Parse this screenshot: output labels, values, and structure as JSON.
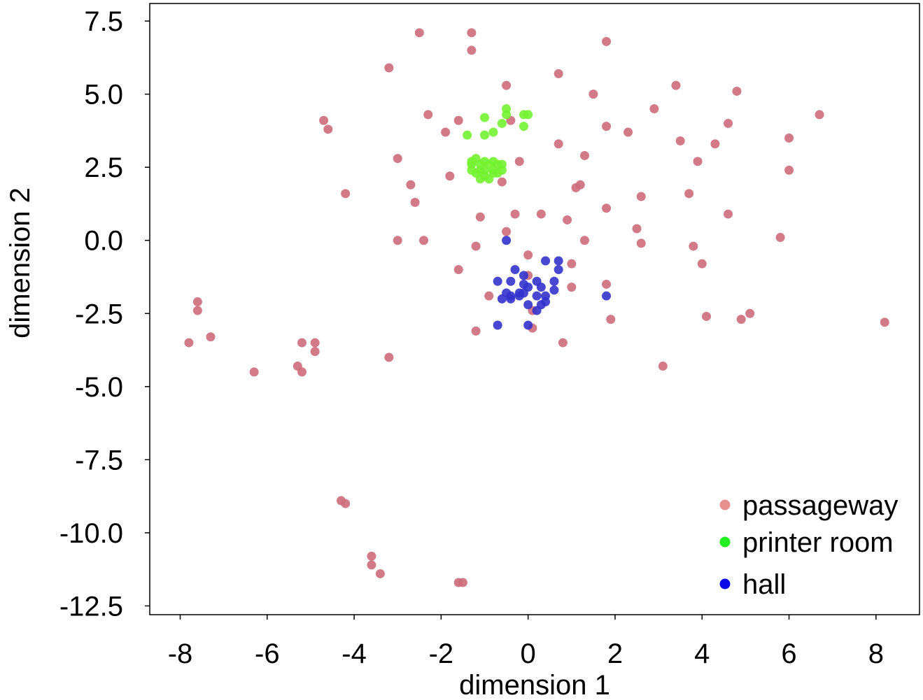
{
  "chart_data": {
    "type": "scatter",
    "title": "",
    "xlabel": "dimension 1",
    "ylabel": "dimension 2",
    "xlim": [
      -8.7,
      9.0
    ],
    "ylim": [
      -12.8,
      8.1
    ],
    "xticks": [
      -8,
      -6,
      -4,
      -2,
      0,
      2,
      4,
      6,
      8
    ],
    "xtick_labels": [
      "-8",
      "-6",
      "-4",
      "-2",
      "0",
      "2",
      "4",
      "6",
      "8"
    ],
    "yticks": [
      7.5,
      5.0,
      2.5,
      0.0,
      -2.5,
      -5.0,
      -7.5,
      -10.0,
      -12.5
    ],
    "ytick_labels": [
      "7.5",
      "5.0",
      "2.5",
      "0.0",
      "-2.5",
      "-5.0",
      "-7.5",
      "-10.0",
      "-12.5"
    ],
    "grid": false,
    "legend_position": "bottom-right",
    "series": [
      {
        "name": "passageway",
        "color": "#cd6b7a",
        "legend_color": "#e8918e",
        "points": [
          [
            -2.5,
            7.1
          ],
          [
            -1.3,
            7.1
          ],
          [
            -1.3,
            6.5
          ],
          [
            1.8,
            6.8
          ],
          [
            -3.2,
            5.9
          ],
          [
            0.7,
            5.7
          ],
          [
            -0.5,
            5.3
          ],
          [
            1.5,
            5.0
          ],
          [
            3.4,
            5.3
          ],
          [
            4.8,
            5.1
          ],
          [
            -2.3,
            4.3
          ],
          [
            -1.6,
            4.1
          ],
          [
            -0.4,
            4.1
          ],
          [
            2.9,
            4.5
          ],
          [
            6.7,
            4.3
          ],
          [
            -4.7,
            4.1
          ],
          [
            -4.6,
            3.8
          ],
          [
            -1.9,
            3.7
          ],
          [
            1.8,
            3.9
          ],
          [
            2.3,
            3.7
          ],
          [
            4.6,
            4.0
          ],
          [
            6.0,
            3.5
          ],
          [
            3.5,
            3.4
          ],
          [
            0.7,
            3.3
          ],
          [
            4.3,
            3.3
          ],
          [
            -3.0,
            2.8
          ],
          [
            1.3,
            2.9
          ],
          [
            -0.2,
            2.7
          ],
          [
            3.9,
            2.7
          ],
          [
            6.0,
            2.4
          ],
          [
            -1.8,
            2.2
          ],
          [
            -0.6,
            2.0
          ],
          [
            -2.7,
            1.9
          ],
          [
            1.1,
            1.8
          ],
          [
            1.2,
            1.9
          ],
          [
            -4.2,
            1.6
          ],
          [
            3.7,
            1.6
          ],
          [
            -2.6,
            1.3
          ],
          [
            2.6,
            1.5
          ],
          [
            1.8,
            1.1
          ],
          [
            -0.3,
            0.9
          ],
          [
            0.3,
            0.9
          ],
          [
            4.6,
            0.9
          ],
          [
            -1.1,
            0.8
          ],
          [
            0.9,
            0.7
          ],
          [
            -0.5,
            0.3
          ],
          [
            2.5,
            0.4
          ],
          [
            -3.0,
            0.0
          ],
          [
            -2.4,
            0.0
          ],
          [
            1.3,
            0.0
          ],
          [
            2.6,
            -0.1
          ],
          [
            5.8,
            0.1
          ],
          [
            -1.2,
            -0.2
          ],
          [
            3.8,
            -0.2
          ],
          [
            0.0,
            -0.5
          ],
          [
            1.0,
            -0.8
          ],
          [
            4.0,
            -0.8
          ],
          [
            -1.6,
            -1.0
          ],
          [
            1.8,
            -1.5
          ],
          [
            0.0,
            -1.2
          ],
          [
            1.0,
            -1.6
          ],
          [
            -0.9,
            -1.9
          ],
          [
            0.1,
            -2.4
          ],
          [
            4.1,
            -2.6
          ],
          [
            4.9,
            -2.7
          ],
          [
            5.1,
            -2.5
          ],
          [
            1.9,
            -2.7
          ],
          [
            8.2,
            -2.8
          ],
          [
            -1.2,
            -3.1
          ],
          [
            0.1,
            -3.0
          ],
          [
            0.8,
            -3.5
          ],
          [
            -7.6,
            -2.1
          ],
          [
            -7.6,
            -2.4
          ],
          [
            -7.3,
            -3.3
          ],
          [
            -7.8,
            -3.5
          ],
          [
            -5.2,
            -3.5
          ],
          [
            -4.9,
            -3.5
          ],
          [
            -4.9,
            -3.8
          ],
          [
            -3.2,
            -4.0
          ],
          [
            -5.3,
            -4.3
          ],
          [
            -5.2,
            -4.5
          ],
          [
            -6.3,
            -4.5
          ],
          [
            3.1,
            -4.3
          ],
          [
            -4.3,
            -8.9
          ],
          [
            -4.2,
            -9.0
          ],
          [
            -3.6,
            -10.8
          ],
          [
            -3.6,
            -11.1
          ],
          [
            -3.4,
            -11.4
          ],
          [
            -1.6,
            -11.7
          ],
          [
            -1.5,
            -11.7
          ]
        ]
      },
      {
        "name": "printer room",
        "color": "#73f230",
        "legend_color": "#22ee22",
        "points": [
          [
            -0.5,
            4.5
          ],
          [
            -0.5,
            4.3
          ],
          [
            -0.1,
            4.3
          ],
          [
            0.0,
            4.3
          ],
          [
            -1.0,
            4.2
          ],
          [
            -0.6,
            4.0
          ],
          [
            -0.1,
            3.9
          ],
          [
            -0.8,
            3.7
          ],
          [
            -1.4,
            3.6
          ],
          [
            -1.0,
            3.6
          ],
          [
            -1.2,
            2.8
          ],
          [
            -1.0,
            2.7
          ],
          [
            -0.8,
            2.7
          ],
          [
            -1.3,
            2.6
          ],
          [
            -1.1,
            2.6
          ],
          [
            -0.9,
            2.6
          ],
          [
            -0.7,
            2.6
          ],
          [
            -0.6,
            2.6
          ],
          [
            -1.3,
            2.4
          ],
          [
            -1.1,
            2.4
          ],
          [
            -1.0,
            2.4
          ],
          [
            -0.8,
            2.4
          ],
          [
            -0.6,
            2.4
          ],
          [
            -1.2,
            2.3
          ],
          [
            -1.0,
            2.2
          ],
          [
            -0.8,
            2.3
          ],
          [
            -1.1,
            2.1
          ],
          [
            -0.9,
            2.1
          ],
          [
            -1.3,
            2.7
          ],
          [
            -0.7,
            2.3
          ]
        ]
      },
      {
        "name": "hall",
        "color": "#3333cc",
        "legend_color": "#0a0ae6",
        "points": [
          [
            -0.5,
            0.0
          ],
          [
            0.4,
            -0.7
          ],
          [
            0.7,
            -0.7
          ],
          [
            -0.3,
            -1.0
          ],
          [
            0.7,
            -1.0
          ],
          [
            -0.1,
            -1.2
          ],
          [
            -0.7,
            -1.4
          ],
          [
            -0.4,
            -1.4
          ],
          [
            0.2,
            -1.4
          ],
          [
            0.6,
            -1.4
          ],
          [
            -0.1,
            -1.5
          ],
          [
            0.0,
            -1.6
          ],
          [
            0.3,
            -1.6
          ],
          [
            0.6,
            -1.7
          ],
          [
            -0.2,
            -1.8
          ],
          [
            0.2,
            -1.9
          ],
          [
            -0.5,
            -1.8
          ],
          [
            -0.4,
            -1.9
          ],
          [
            -0.1,
            -1.8
          ],
          [
            0.4,
            -1.9
          ],
          [
            -0.6,
            -2.0
          ],
          [
            -0.4,
            -2.0
          ],
          [
            -0.2,
            -1.9
          ],
          [
            0.3,
            -2.2
          ],
          [
            0.4,
            -2.1
          ],
          [
            0.0,
            -2.2
          ],
          [
            0.2,
            -2.4
          ],
          [
            1.8,
            -1.9
          ],
          [
            -0.7,
            -2.9
          ],
          [
            0.0,
            -2.9
          ]
        ]
      }
    ]
  }
}
